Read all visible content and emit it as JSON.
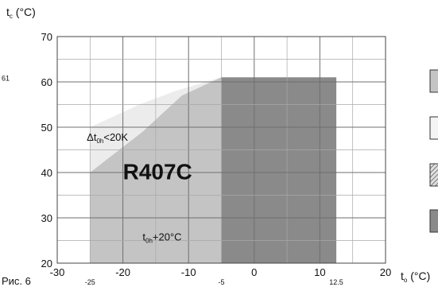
{
  "chart_data": {
    "type": "area",
    "refrigerant": "R407C",
    "xlabel": "t",
    "xlabel_sub": "o",
    "xlabel_unit": "(°C)",
    "ylabel": "t",
    "ylabel_sub": "c",
    "ylabel_unit": "(°C)",
    "xlim": [
      -30,
      20
    ],
    "ylim": [
      20,
      70
    ],
    "x_ticks": [
      "-30",
      "-20",
      "-10",
      "0",
      "10",
      "20"
    ],
    "y_ticks": [
      "20",
      "30",
      "40",
      "50",
      "60",
      "70"
    ],
    "x_extra_ticks": [
      {
        "value": -25,
        "label": "-25"
      },
      {
        "value": -5,
        "label": "-5"
      },
      {
        "value": 12.5,
        "label": "12.5"
      }
    ],
    "y_extra_ticks": [
      {
        "value": 61,
        "label": "61"
      }
    ],
    "grid": true,
    "regions": [
      {
        "name": "superheat-limit-zone",
        "color": "#ececec",
        "points": [
          [
            -25,
            40
          ],
          [
            -25,
            50
          ],
          [
            -17.5,
            55
          ],
          [
            -12,
            58
          ],
          [
            -5,
            61
          ],
          [
            -5,
            50
          ]
        ]
      },
      {
        "name": "suction-gas-limit-zone",
        "color": "#c4c4c4",
        "points": [
          [
            -25,
            20
          ],
          [
            -25,
            40
          ],
          [
            -17,
            49
          ],
          [
            -11,
            57
          ],
          [
            -5,
            61
          ],
          [
            -5,
            20
          ]
        ]
      },
      {
        "name": "standard-zone",
        "color": "#8a8a8a",
        "points": [
          [
            -5,
            20
          ],
          [
            -5,
            61
          ],
          [
            12.5,
            61
          ],
          [
            12.5,
            20
          ]
        ]
      }
    ],
    "annotations": [
      {
        "name": "annotation-superheat",
        "text": "Δt",
        "sub": "0h",
        "suffix": "<20K",
        "x": -25.5,
        "y": 47
      },
      {
        "name": "annotation-suction-temp",
        "text": "t",
        "sub": "0h",
        "suffix": "+20°C",
        "x": -17,
        "y": 25
      }
    ],
    "label": {
      "text": "R407C",
      "x": -20,
      "y": 38.5
    }
  },
  "caption": "Рис. 6"
}
